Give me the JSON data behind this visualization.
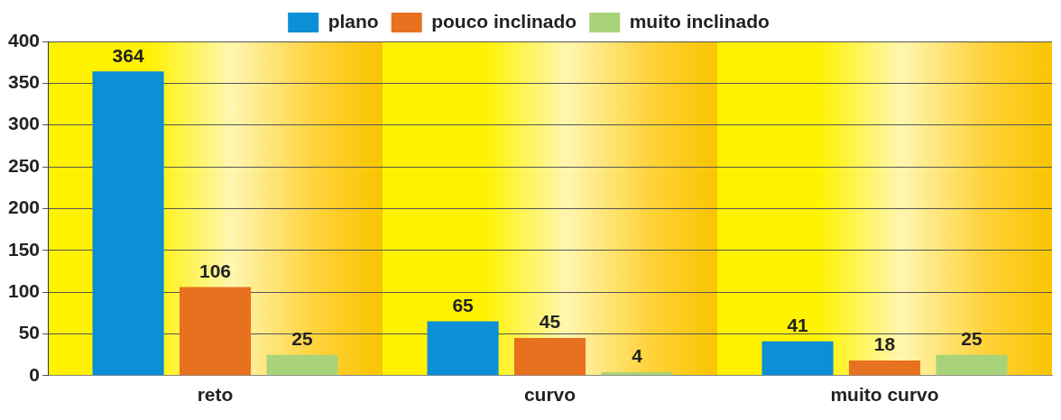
{
  "chart_data": {
    "type": "bar",
    "categories": [
      "reto",
      "curvo",
      "muito curvo"
    ],
    "series": [
      {
        "name": "plano",
        "color": "#0b8fd6",
        "values": [
          364,
          65,
          41
        ]
      },
      {
        "name": "pouco inclinado",
        "color": "#e8711f",
        "values": [
          106,
          45,
          18
        ]
      },
      {
        "name": "muito inclinado",
        "color": "#a9d37a",
        "values": [
          25,
          4,
          25
        ]
      }
    ],
    "ylim": [
      0,
      400
    ],
    "yticks": [
      0,
      50,
      100,
      150,
      200,
      250,
      300,
      350,
      400
    ],
    "grid": "y",
    "legend": "top",
    "data_labels": true
  }
}
